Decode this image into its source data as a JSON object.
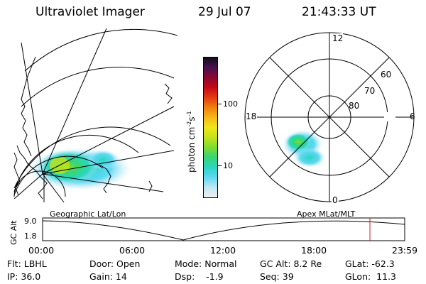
{
  "header": {
    "instrument": "Ultraviolet Imager",
    "date": "29 Jul 07",
    "time": "21:43:33 UT"
  },
  "colorbar": {
    "unit_prefix": "photon cm",
    "unit_exp1": "-2",
    "unit_s": "s",
    "unit_exp2": "-1",
    "tick_100": "100",
    "tick_10": "10",
    "colors": [
      "#efefef",
      "#bfe8f4",
      "#5ed8f2",
      "#2ad6c2",
      "#37d673",
      "#7cdc30",
      "#c6e21c",
      "#efe61a",
      "#f5b818",
      "#f08010",
      "#e43a10",
      "#c40818",
      "#8a0830",
      "#481050",
      "#101018"
    ]
  },
  "polar_plot": {
    "label_12": "12",
    "label_18": "18",
    "label_6": "6",
    "label_0": "0",
    "label_60": "60",
    "label_70": "70",
    "label_80": "80"
  },
  "altitude_plot": {
    "map_label": "Geographic Lat/Lon",
    "coord_label": "Apex MLat/MLT",
    "axis_title": "GC Alt",
    "y_top": "9.0",
    "y_bottom": "1.8",
    "x_ticks": [
      "00:00",
      "06:00",
      "12:00",
      "18:00",
      "23:59"
    ],
    "marker_color": "#d01818"
  },
  "footer": {
    "flt": "Flt: LBHL",
    "ip": "IP: 36.0",
    "door": "Door: Open",
    "gain": "Gain: 14",
    "mode": "Mode: Normal",
    "dsp": "Dsp:    -1.9",
    "gcalt": "GC Alt: 8.2 Re",
    "seq": "Seq: 39",
    "glat": "GLat: -62.3",
    "glon": "GLon:  11.3"
  }
}
